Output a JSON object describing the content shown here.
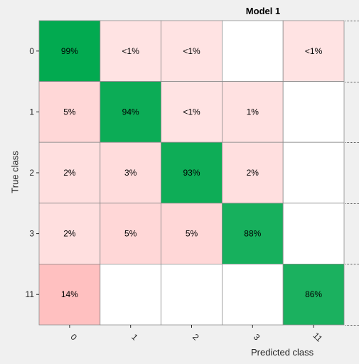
{
  "chart_data": {
    "type": "heatmap",
    "title": "Model 1",
    "xlabel": "Predicted class",
    "ylabel": "True class",
    "categories": [
      "0",
      "1",
      "2",
      "3",
      "11"
    ],
    "rows": [
      {
        "true_class": "0",
        "cells": [
          "99%",
          "<1%",
          "<1%",
          "",
          "<1%"
        ]
      },
      {
        "true_class": "1",
        "cells": [
          "5%",
          "94%",
          "<1%",
          "1%",
          ""
        ]
      },
      {
        "true_class": "2",
        "cells": [
          "2%",
          "3%",
          "93%",
          "2%",
          ""
        ]
      },
      {
        "true_class": "3",
        "cells": [
          "2%",
          "5%",
          "5%",
          "88%",
          ""
        ]
      },
      {
        "true_class": "11",
        "cells": [
          "14%",
          "",
          "",
          "",
          "86%"
        ]
      }
    ],
    "values": [
      [
        99,
        0.5,
        0.5,
        0,
        0.5
      ],
      [
        5,
        94,
        0.5,
        1,
        0
      ],
      [
        2,
        3,
        93,
        2,
        0
      ],
      [
        2,
        5,
        5,
        88,
        0
      ],
      [
        14,
        0,
        0,
        0,
        86
      ]
    ],
    "colors": {
      "diagonal_strong": "#00a94f",
      "diagonal_weak": "#27b466",
      "offdiag_light": "#ffe4e4",
      "offdiag_strong": "#ffc0c0",
      "empty": "#ffffff",
      "grid": "#8c8c8c"
    },
    "grid": true
  }
}
